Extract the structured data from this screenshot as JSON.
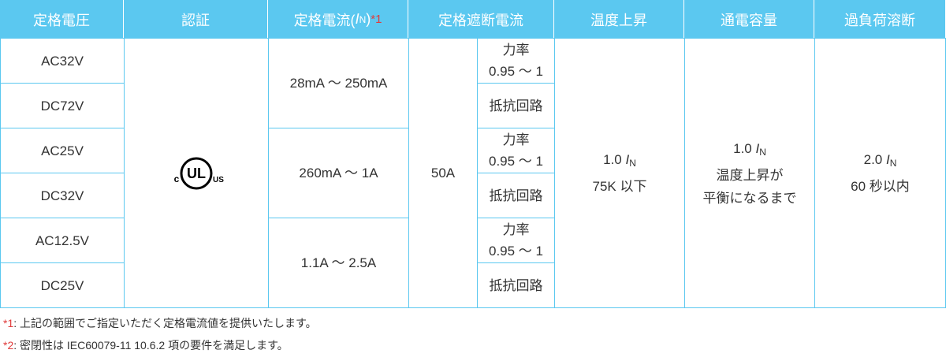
{
  "header": {
    "voltage": "定格電圧",
    "cert": "認証",
    "current": {
      "text": "定格電流(",
      "symbol": "I",
      "sub": "N",
      "close": ")",
      "note": "*1"
    },
    "breaking": "定格遮断電流",
    "temp": "温度上昇",
    "carry": "通電容量",
    "overload": "過負荷溶断"
  },
  "body": {
    "voltages": [
      "AC32V",
      "DC72V",
      "AC25V",
      "DC32V",
      "AC12.5V",
      "DC25V"
    ],
    "cert_logo": {
      "left": "c",
      "center": "UL",
      "right": "US"
    },
    "currents": [
      "28mA ～ 250mA",
      "260mA ～ 1A",
      "1.1A ～ 2.5A"
    ],
    "breaking_current": "50A",
    "conditions": [
      [
        "力率",
        "0.95 ～ 1"
      ],
      [
        "抵抗回路"
      ],
      [
        "力率",
        "0.95 ～ 1"
      ],
      [
        "抵抗回路"
      ],
      [
        "力率",
        "0.95 ～ 1"
      ],
      [
        "抵抗回路"
      ]
    ],
    "temp": {
      "value": "1.0",
      "symbol": "I",
      "sub": "N",
      "lines": [
        "75K 以下"
      ]
    },
    "carry": {
      "value": "1.0",
      "symbol": "I",
      "sub": "N",
      "lines": [
        "温度上昇が",
        "平衡になるまで"
      ]
    },
    "overload": {
      "value": "2.0",
      "symbol": "I",
      "sub": "N",
      "lines": [
        "60 秒以内"
      ]
    }
  },
  "footnotes": [
    {
      "mark": "*1",
      "text": ":  上記の範囲でご指定いただく定格電流値を提供いたします。"
    },
    {
      "mark": "*2",
      "text": ":  密閉性は IEC60079-11  10.6.2 項の要件を満足します。"
    }
  ]
}
